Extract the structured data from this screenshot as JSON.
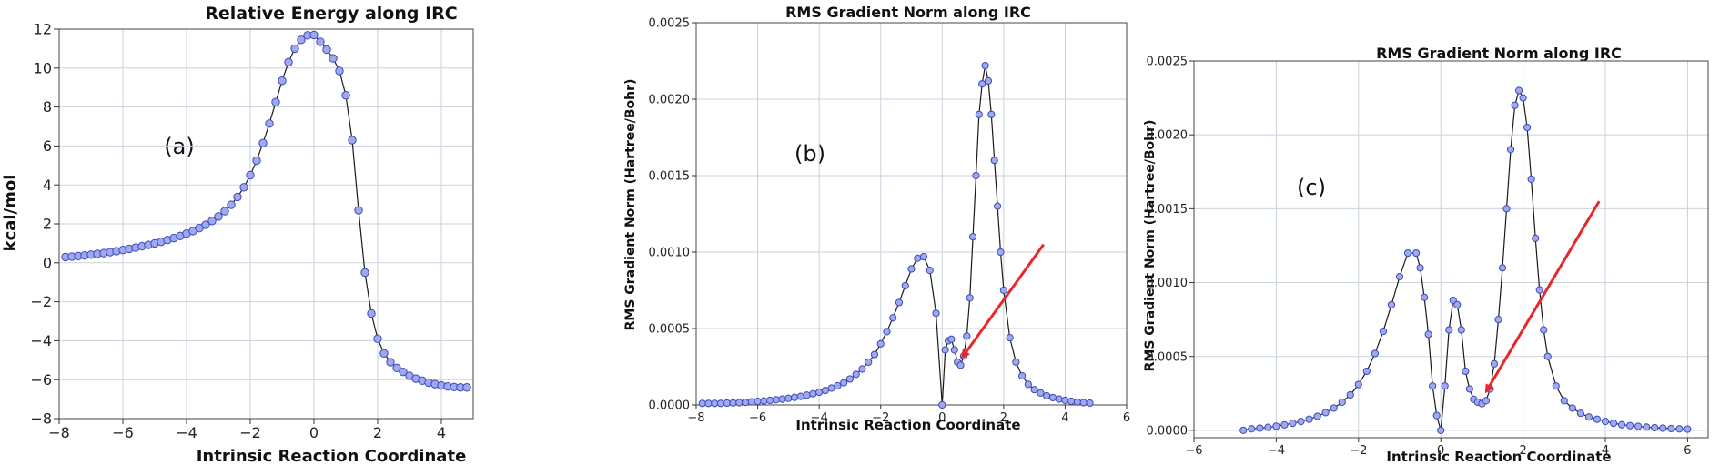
{
  "chart_data": [
    {
      "type": "scatter",
      "title": "Relative Energy along IRC",
      "xlabel": "Intrinsic Reaction Coordinate",
      "ylabel": "kcal/mol",
      "panel_label": "(a)",
      "xlim": [
        -8,
        5
      ],
      "ylim": [
        -8,
        12
      ],
      "xticks": [
        -8,
        -6,
        -4,
        -2,
        0,
        2,
        4
      ],
      "yticks": [
        -8,
        -6,
        -4,
        -2,
        0,
        2,
        4,
        6,
        8,
        10,
        12
      ],
      "xtick_labels": [
        "−8",
        "−6",
        "−4",
        "−2",
        "0",
        "2",
        "4"
      ],
      "ytick_labels": [
        "−8",
        "−6",
        "−4",
        "−2",
        "0",
        "2",
        "4",
        "6",
        "8",
        "10",
        "12"
      ],
      "grid": true,
      "series": [
        {
          "x": [
            -7.8,
            -7.6,
            -7.4,
            -7.2,
            -7.0,
            -6.8,
            -6.6,
            -6.4,
            -6.2,
            -6.0,
            -5.8,
            -5.6,
            -5.4,
            -5.2,
            -5.0,
            -4.8,
            -4.6,
            -4.4,
            -4.2,
            -4.0,
            -3.8,
            -3.6,
            -3.4,
            -3.2,
            -3.0,
            -2.8,
            -2.6,
            -2.4,
            -2.2,
            -2.0,
            -1.8,
            -1.6,
            -1.4,
            -1.2,
            -1.0,
            -0.8,
            -0.6,
            -0.4,
            -0.2,
            0.0,
            0.2,
            0.4,
            0.6,
            0.8,
            1.0,
            1.2,
            1.4,
            1.6,
            1.8,
            2.0,
            2.2,
            2.4,
            2.6,
            2.8,
            3.0,
            3.2,
            3.4,
            3.6,
            3.8,
            4.0,
            4.2,
            4.4,
            4.6,
            4.8
          ],
          "y": [
            0.3,
            0.32,
            0.35,
            0.38,
            0.42,
            0.46,
            0.5,
            0.55,
            0.6,
            0.66,
            0.72,
            0.78,
            0.85,
            0.92,
            1.0,
            1.08,
            1.17,
            1.27,
            1.38,
            1.5,
            1.63,
            1.78,
            1.95,
            2.15,
            2.38,
            2.65,
            2.98,
            3.38,
            3.88,
            4.5,
            5.25,
            6.15,
            7.15,
            8.25,
            9.35,
            10.3,
            11.0,
            11.45,
            11.68,
            11.7,
            11.35,
            10.95,
            10.5,
            9.85,
            8.6,
            6.3,
            2.7,
            -0.5,
            -2.6,
            -3.9,
            -4.65,
            -5.1,
            -5.4,
            -5.6,
            -5.8,
            -5.95,
            -6.05,
            -6.15,
            -6.23,
            -6.3,
            -6.35,
            -6.38,
            -6.4,
            -6.4
          ]
        }
      ]
    },
    {
      "type": "scatter",
      "title": "RMS Gradient Norm along IRC",
      "xlabel": "Intrinsic Reaction Coordinate",
      "ylabel": "RMS Gradient Norm (Hartree/Bohr)",
      "panel_label": "(b)",
      "xlim": [
        -8,
        6
      ],
      "ylim": [
        0,
        0.0025
      ],
      "xticks": [
        -8,
        -6,
        -4,
        -2,
        0,
        2,
        4,
        6
      ],
      "yticks": [
        0,
        0.0005,
        0.001,
        0.0015,
        0.002,
        0.0025
      ],
      "xtick_labels": [
        "−8",
        "−6",
        "−4",
        "−2",
        "0",
        "2",
        "4",
        "6"
      ],
      "ytick_labels": [
        "0.0000",
        "0.0005",
        "0.0010",
        "0.0015",
        "0.0020",
        "0.0025"
      ],
      "grid": true,
      "arrow_color": "#e8262b",
      "series": [
        {
          "x": [
            -7.8,
            -7.6,
            -7.4,
            -7.2,
            -7.0,
            -6.8,
            -6.6,
            -6.4,
            -6.2,
            -6.0,
            -5.8,
            -5.6,
            -5.4,
            -5.2,
            -5.0,
            -4.8,
            -4.6,
            -4.4,
            -4.2,
            -4.0,
            -3.8,
            -3.6,
            -3.4,
            -3.2,
            -3.0,
            -2.8,
            -2.6,
            -2.4,
            -2.2,
            -2.0,
            -1.8,
            -1.6,
            -1.4,
            -1.2,
            -1.0,
            -0.8,
            -0.6,
            -0.4,
            -0.2,
            0.0,
            0.1,
            0.2,
            0.3,
            0.4,
            0.5,
            0.6,
            0.7,
            0.8,
            0.9,
            1.0,
            1.1,
            1.2,
            1.3,
            1.4,
            1.5,
            1.6,
            1.7,
            1.8,
            1.9,
            2.0,
            2.2,
            2.4,
            2.6,
            2.8,
            3.0,
            3.2,
            3.4,
            3.6,
            3.8,
            4.0,
            4.2,
            4.4,
            4.6,
            4.8
          ],
          "y": [
            1e-05,
            1e-05,
            1e-05,
            1e-05,
            1.2e-05,
            1.3e-05,
            1.5e-05,
            1.7e-05,
            2e-05,
            2.3e-05,
            2.6e-05,
            3e-05,
            3.4e-05,
            3.8e-05,
            4.3e-05,
            4.9e-05,
            5.6e-05,
            6.4e-05,
            7.3e-05,
            8.3e-05,
            9.5e-05,
            0.00011,
            0.000125,
            0.000145,
            0.00017,
            0.0002,
            0.000235,
            0.00028,
            0.00033,
            0.0004,
            0.00048,
            0.00057,
            0.00067,
            0.00078,
            0.00089,
            0.00096,
            0.00097,
            0.00088,
            0.0006,
            0.0,
            0.00036,
            0.00042,
            0.00043,
            0.00036,
            0.00028,
            0.00026,
            0.00032,
            0.00045,
            0.0007,
            0.0011,
            0.0015,
            0.0019,
            0.0021,
            0.00222,
            0.00212,
            0.0019,
            0.0016,
            0.0013,
            0.001,
            0.00075,
            0.00044,
            0.00028,
            0.00019,
            0.000135,
            0.0001,
            7.8e-05,
            6e-05,
            4.8e-05,
            3.8e-05,
            3e-05,
            2.4e-05,
            1.9e-05,
            1.5e-05,
            1.2e-05
          ]
        }
      ]
    },
    {
      "type": "scatter",
      "title": "RMS Gradient Norm along IRC",
      "xlabel": "Intrinsic Reaction Coordinate",
      "ylabel": "RMS Gradient Norm (Hartree/Bohr)",
      "panel_label": "(c)",
      "xlim": [
        -6,
        6.5
      ],
      "ylim": [
        -5e-05,
        0.0025
      ],
      "xticks": [
        -6,
        -4,
        -2,
        0,
        2,
        4,
        6
      ],
      "yticks": [
        0,
        0.0005,
        0.001,
        0.0015,
        0.002,
        0.0025
      ],
      "xtick_labels": [
        "−6",
        "−4",
        "−2",
        "0",
        "2",
        "4",
        "6"
      ],
      "ytick_labels": [
        "0.0000",
        "0.0005",
        "0.0010",
        "0.0015",
        "0.0020",
        "0.0025"
      ],
      "grid": true,
      "arrow_color": "#e8262b",
      "series": [
        {
          "x": [
            -4.8,
            -4.6,
            -4.4,
            -4.2,
            -4.0,
            -3.8,
            -3.6,
            -3.4,
            -3.2,
            -3.0,
            -2.8,
            -2.6,
            -2.4,
            -2.2,
            -2.0,
            -1.8,
            -1.6,
            -1.4,
            -1.2,
            -1.0,
            -0.8,
            -0.6,
            -0.5,
            -0.4,
            -0.3,
            -0.2,
            -0.1,
            0.0,
            0.1,
            0.2,
            0.3,
            0.4,
            0.5,
            0.6,
            0.7,
            0.8,
            0.9,
            1.0,
            1.1,
            1.2,
            1.3,
            1.4,
            1.5,
            1.6,
            1.7,
            1.8,
            1.9,
            2.0,
            2.1,
            2.2,
            2.3,
            2.4,
            2.5,
            2.6,
            2.8,
            3.0,
            3.2,
            3.4,
            3.6,
            3.8,
            4.0,
            4.2,
            4.4,
            4.6,
            4.8,
            5.0,
            5.2,
            5.4,
            5.6,
            5.8,
            6.0
          ],
          "y": [
            0.0,
            1e-05,
            1.5e-05,
            2e-05,
            2.8e-05,
            3.7e-05,
            4.8e-05,
            6e-05,
            7.5e-05,
            9.5e-05,
            0.00012,
            0.00015,
            0.00019,
            0.00024,
            0.00031,
            0.0004,
            0.00052,
            0.00067,
            0.00085,
            0.00104,
            0.0012,
            0.0012,
            0.0011,
            0.0009,
            0.00065,
            0.0003,
            0.0001,
            0.0,
            0.0003,
            0.00068,
            0.00088,
            0.00085,
            0.00068,
            0.0004,
            0.00028,
            0.00021,
            0.00019,
            0.00018,
            0.0002,
            0.00028,
            0.00045,
            0.00075,
            0.0011,
            0.0015,
            0.0019,
            0.0022,
            0.0023,
            0.00225,
            0.00205,
            0.0017,
            0.0013,
            0.00095,
            0.00068,
            0.0005,
            0.0003,
            0.0002,
            0.00015,
            0.000115,
            9e-05,
            7.5e-05,
            6e-05,
            4.8e-05,
            3.8e-05,
            3.2e-05,
            2.7e-05,
            2.2e-05,
            1.8e-05,
            1.5e-05,
            1.2e-05,
            1e-05,
            8e-06
          ]
        }
      ]
    }
  ]
}
